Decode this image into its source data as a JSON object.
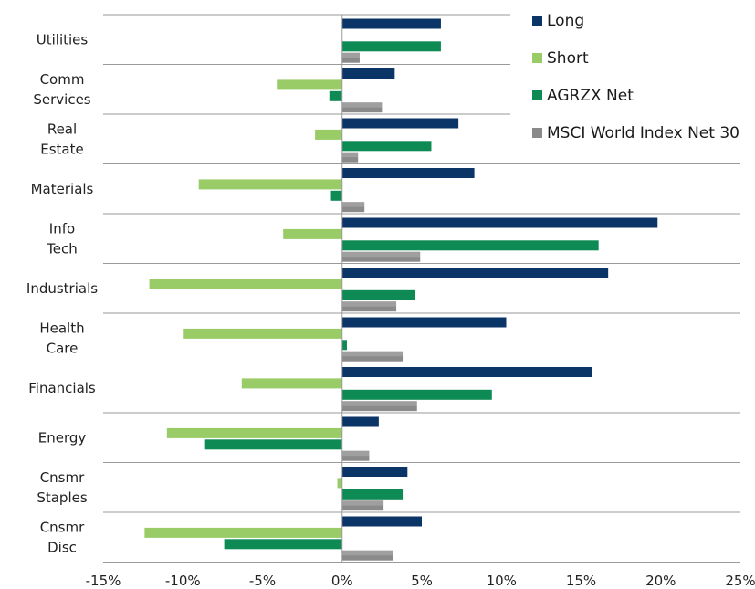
{
  "chart_data": {
    "type": "bar",
    "orientation": "horizontal",
    "categories": [
      [
        "Utilities"
      ],
      [
        "Comm",
        "Services"
      ],
      [
        "Real",
        "Estate"
      ],
      [
        "Materials"
      ],
      [
        "Info",
        "Tech"
      ],
      [
        "Industrials"
      ],
      [
        "Health",
        "Care"
      ],
      [
        "Financials"
      ],
      [
        "Energy"
      ],
      [
        "Cnsmr",
        "Staples"
      ],
      [
        "Cnsmr",
        "Disc"
      ]
    ],
    "series": [
      {
        "name": "Long",
        "color": "#0b3566",
        "values": [
          6.2,
          3.3,
          7.3,
          8.3,
          19.8,
          16.7,
          10.3,
          15.7,
          2.3,
          4.1,
          5.0
        ]
      },
      {
        "name": "Short",
        "color": "#99cc66",
        "values": [
          0.0,
          -4.1,
          -1.7,
          -9.0,
          -3.7,
          -12.1,
          -10.0,
          -6.3,
          -11.0,
          -0.3,
          -12.4
        ]
      },
      {
        "name": "AGRZX Net",
        "color": "#0e8a55",
        "values": [
          6.2,
          -0.8,
          5.6,
          -0.7,
          16.1,
          4.6,
          0.3,
          9.4,
          -8.6,
          3.8,
          -7.4
        ]
      },
      {
        "name": "MSCI World Index Net 30",
        "color": "#8a8a8a",
        "values": [
          1.1,
          2.5,
          1.0,
          1.4,
          4.9,
          3.4,
          3.8,
          4.7,
          1.7,
          2.6,
          3.2
        ]
      }
    ],
    "xlim": [
      -15,
      25
    ],
    "xticks": [
      "-15%",
      "-10%",
      "-5%",
      "0%",
      "5%",
      "10%",
      "15%",
      "20%",
      "25%"
    ],
    "xtick_values": [
      -15,
      -10,
      -5,
      0,
      5,
      10,
      15,
      20,
      25
    ],
    "legend_position": "top-right",
    "grid": "horizontal separators between categories"
  }
}
